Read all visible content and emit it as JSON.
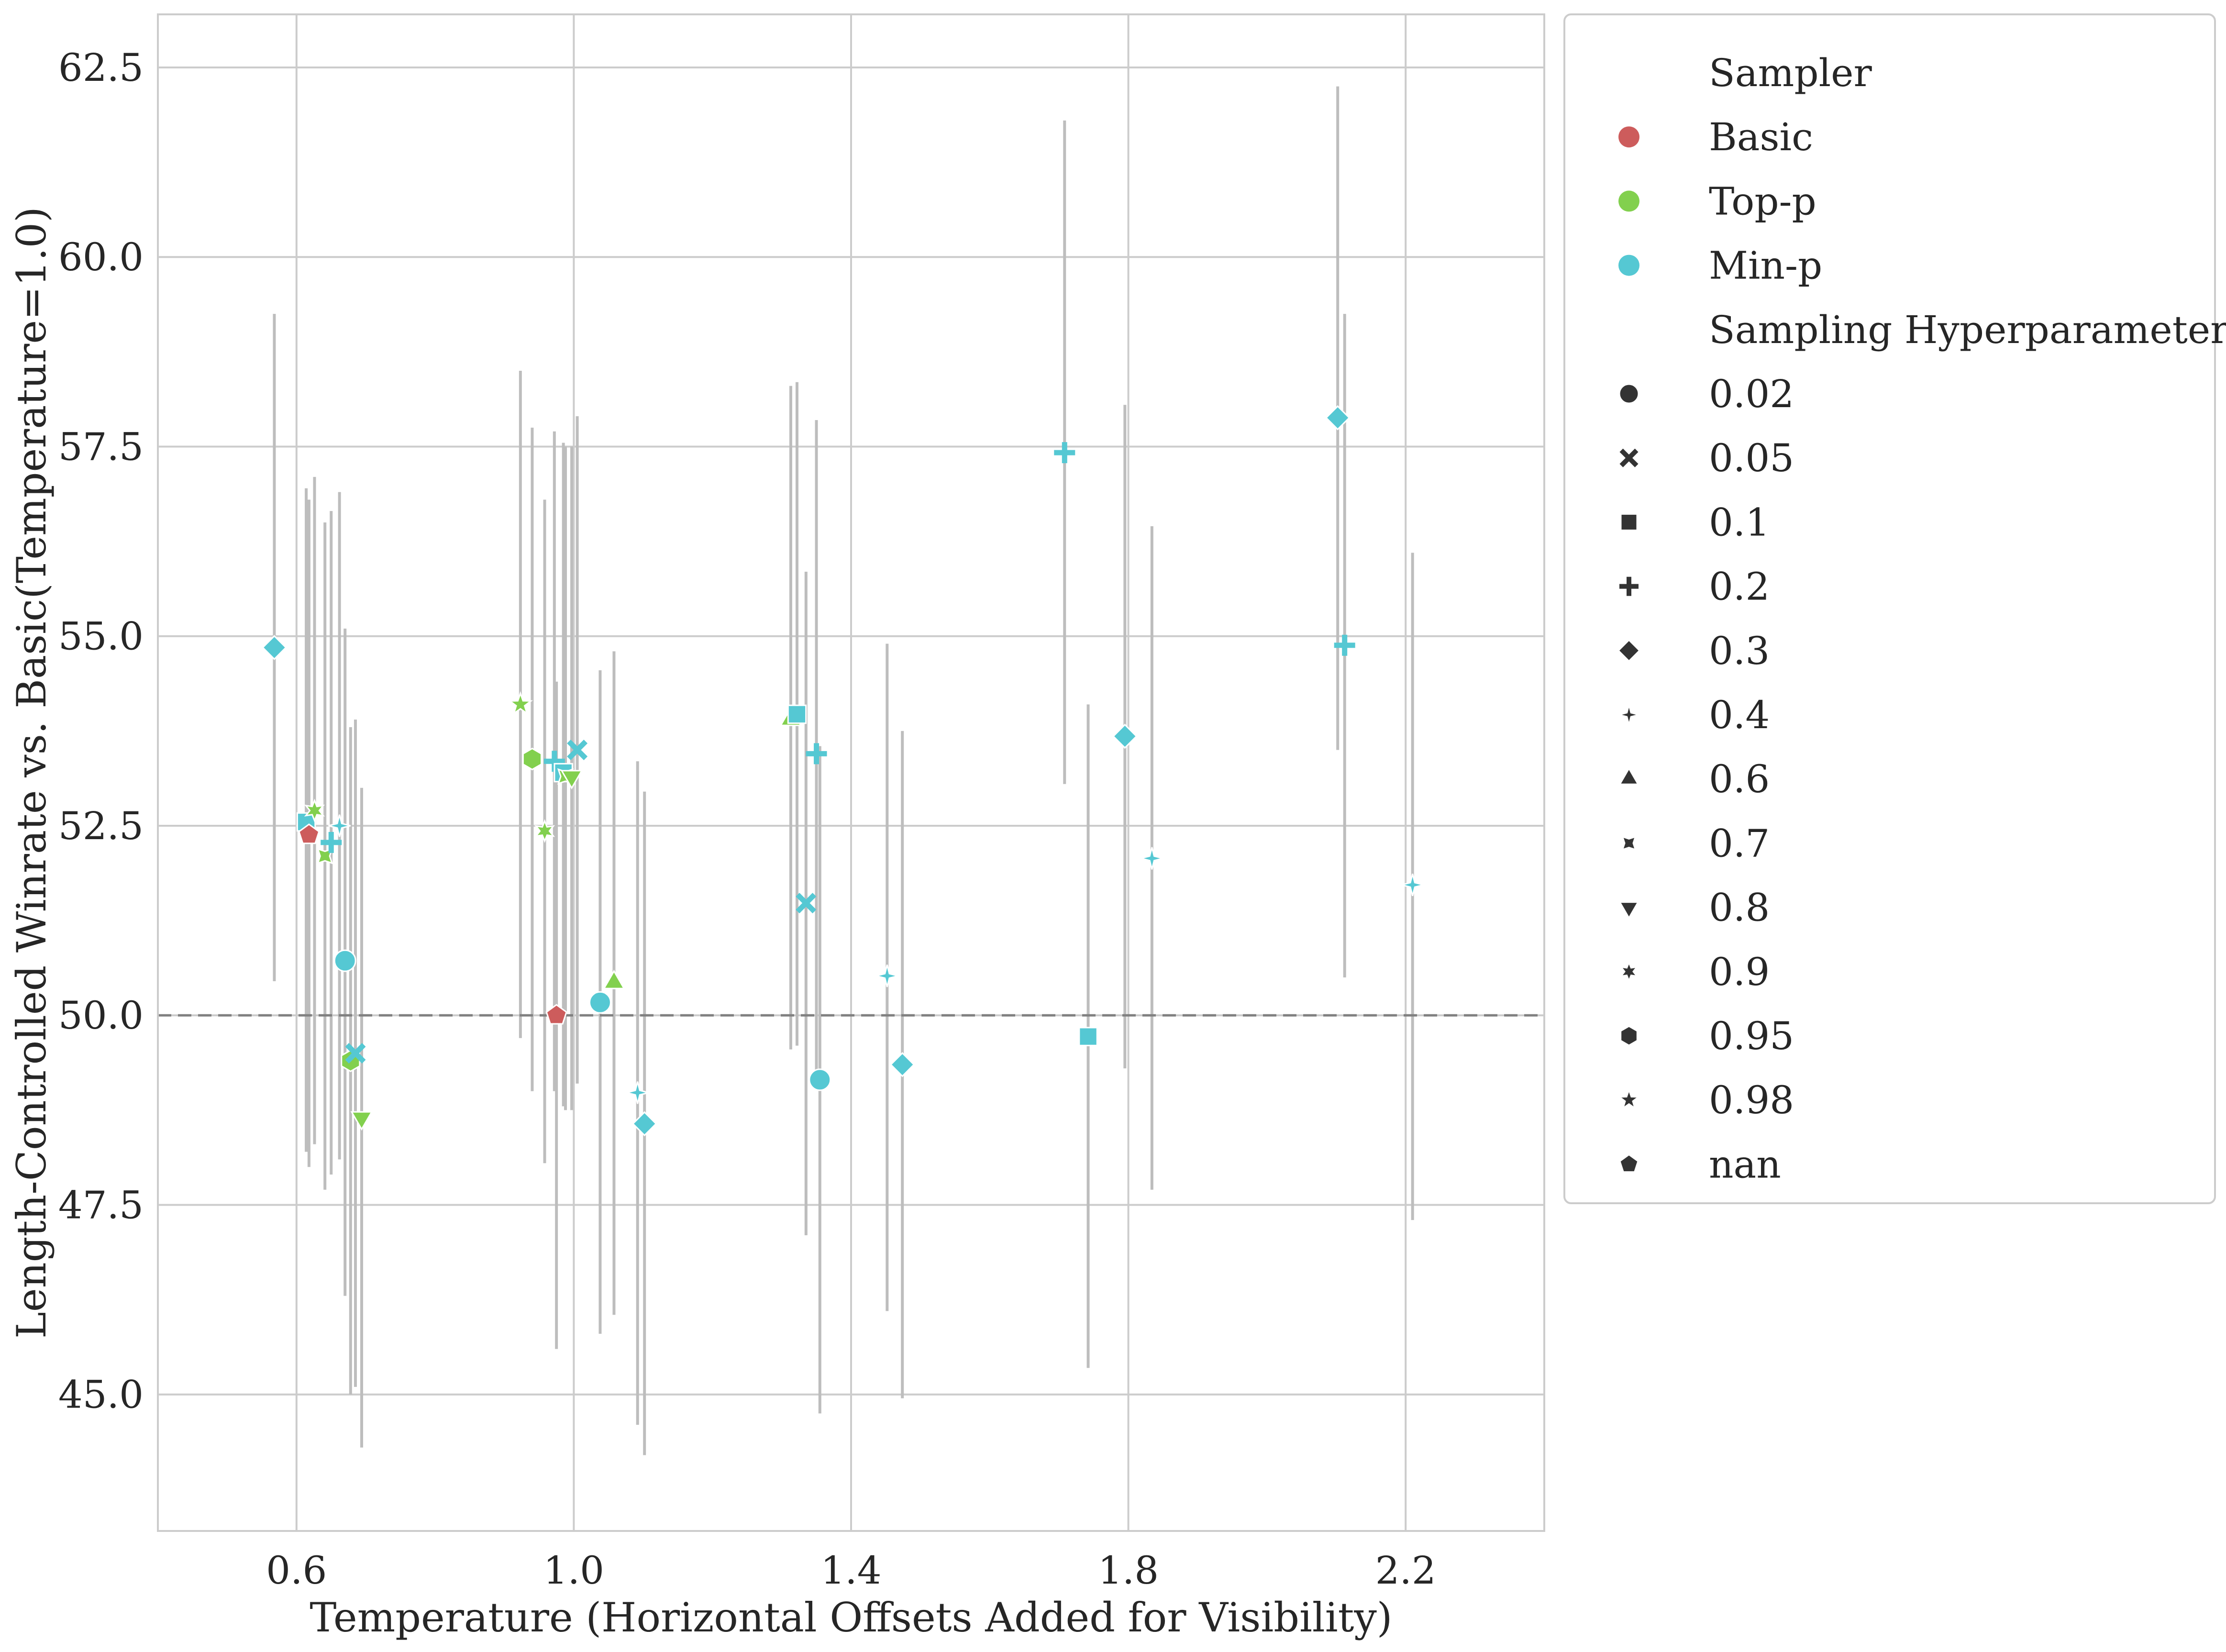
{
  "chart_data": {
    "type": "scatter",
    "xlabel": "Temperature (Horizontal Offsets Added for Visibility)",
    "ylabel": "Length-Controlled Winrate vs. Basic(Temperature=1.0)",
    "xlim": [
      0.4,
      2.4
    ],
    "ylim": [
      43.2,
      63.2
    ],
    "xticks": [
      "0.6",
      "1.0",
      "1.4",
      "1.8",
      "2.2"
    ],
    "yticks": [
      "45.0",
      "47.5",
      "50.0",
      "52.5",
      "55.0",
      "57.5",
      "60.0",
      "62.5"
    ],
    "xtick_values": [
      0.6,
      1.0,
      1.4,
      1.8,
      2.2
    ],
    "ytick_values": [
      45.0,
      47.5,
      50.0,
      52.5,
      55.0,
      57.5,
      60.0,
      62.5
    ],
    "grid": true,
    "reference_line": {
      "y": 50.0,
      "style": "dashed",
      "color": "#808080"
    },
    "legend": {
      "position": "outside-right",
      "sampler_title": "Sampler",
      "samplers": [
        {
          "name": "Basic",
          "color": "#cd5c5c"
        },
        {
          "name": "Top-p",
          "color": "#82d04e"
        },
        {
          "name": "Min-p",
          "color": "#55c8d3"
        }
      ],
      "hyper_title": "Sampling Hyperparameter",
      "hyperparameters": [
        {
          "label": "0.02",
          "marker": "circle"
        },
        {
          "label": "0.05",
          "marker": "x"
        },
        {
          "label": "0.1",
          "marker": "square"
        },
        {
          "label": "0.2",
          "marker": "plus"
        },
        {
          "label": "0.3",
          "marker": "diamond"
        },
        {
          "label": "0.4",
          "marker": "star4"
        },
        {
          "label": "0.6",
          "marker": "triangle-up"
        },
        {
          "label": "0.7",
          "marker": "star4-thick"
        },
        {
          "label": "0.8",
          "marker": "triangle-down"
        },
        {
          "label": "0.9",
          "marker": "star6"
        },
        {
          "label": "0.95",
          "marker": "hexagon"
        },
        {
          "label": "0.98",
          "marker": "star5"
        },
        {
          "label": "nan",
          "marker": "pentagon"
        }
      ]
    },
    "points": [
      {
        "sampler": "Min-p",
        "hp": "0.3",
        "x": 0.568,
        "y": 54.85,
        "lo": 50.45,
        "hi": 59.25
      },
      {
        "sampler": "Min-p",
        "hp": "0.1",
        "x": 0.614,
        "y": 52.55,
        "lo": 48.2,
        "hi": 56.95
      },
      {
        "sampler": "Basic",
        "hp": "nan",
        "x": 0.618,
        "y": 52.38,
        "lo": 48.0,
        "hi": 56.8
      },
      {
        "sampler": "Top-p",
        "hp": "0.9",
        "x": 0.626,
        "y": 52.7,
        "lo": 48.3,
        "hi": 57.1
      },
      {
        "sampler": "Top-p",
        "hp": "0.7",
        "x": 0.641,
        "y": 52.1,
        "lo": 47.7,
        "hi": 56.5
      },
      {
        "sampler": "Min-p",
        "hp": "0.2",
        "x": 0.65,
        "y": 52.28,
        "lo": 47.9,
        "hi": 56.65
      },
      {
        "sampler": "Min-p",
        "hp": "0.4",
        "x": 0.662,
        "y": 52.5,
        "lo": 48.1,
        "hi": 56.9
      },
      {
        "sampler": "Min-p",
        "hp": "0.02",
        "x": 0.67,
        "y": 50.72,
        "lo": 46.3,
        "hi": 55.1
      },
      {
        "sampler": "Top-p",
        "hp": "0.95",
        "x": 0.678,
        "y": 49.4,
        "lo": 45.0,
        "hi": 53.8
      },
      {
        "sampler": "Min-p",
        "hp": "0.05",
        "x": 0.685,
        "y": 49.5,
        "lo": 45.1,
        "hi": 53.9
      },
      {
        "sampler": "Top-p",
        "hp": "0.8",
        "x": 0.694,
        "y": 48.65,
        "lo": 44.3,
        "hi": 53.0
      },
      {
        "sampler": "Top-p",
        "hp": "0.98",
        "x": 0.923,
        "y": 54.1,
        "lo": 49.7,
        "hi": 58.5
      },
      {
        "sampler": "Top-p",
        "hp": "0.95",
        "x": 0.94,
        "y": 53.38,
        "lo": 49.0,
        "hi": 57.75
      },
      {
        "sampler": "Top-p",
        "hp": "0.9",
        "x": 0.958,
        "y": 52.43,
        "lo": 48.05,
        "hi": 56.8
      },
      {
        "sampler": "Min-p",
        "hp": "0.2",
        "x": 0.972,
        "y": 53.35,
        "lo": 49.0,
        "hi": 57.7
      },
      {
        "sampler": "Basic",
        "hp": "nan",
        "x": 0.975,
        "y": 50.0,
        "lo": 45.6,
        "hi": 54.4
      },
      {
        "sampler": "Min-p",
        "hp": "0.1",
        "x": 0.985,
        "y": 53.2,
        "lo": 48.8,
        "hi": 57.55
      },
      {
        "sampler": "Top-p",
        "hp": "0.7",
        "x": 0.988,
        "y": 53.15,
        "lo": 48.75,
        "hi": 57.5
      },
      {
        "sampler": "Top-p",
        "hp": "0.8",
        "x": 0.997,
        "y": 53.15,
        "lo": 48.75,
        "hi": 57.5
      },
      {
        "sampler": "Min-p",
        "hp": "0.05",
        "x": 1.005,
        "y": 53.5,
        "lo": 49.1,
        "hi": 57.9
      },
      {
        "sampler": "Min-p",
        "hp": "0.02",
        "x": 1.038,
        "y": 50.17,
        "lo": 45.8,
        "hi": 54.55
      },
      {
        "sampler": "Top-p",
        "hp": "0.6",
        "x": 1.058,
        "y": 50.43,
        "lo": 46.05,
        "hi": 54.8
      },
      {
        "sampler": "Min-p",
        "hp": "0.4",
        "x": 1.092,
        "y": 48.98,
        "lo": 44.6,
        "hi": 53.35
      },
      {
        "sampler": "Min-p",
        "hp": "0.3",
        "x": 1.102,
        "y": 48.57,
        "lo": 44.2,
        "hi": 52.95
      },
      {
        "sampler": "Top-p",
        "hp": "0.6",
        "x": 1.313,
        "y": 53.9,
        "lo": 49.55,
        "hi": 58.3
      },
      {
        "sampler": "Min-p",
        "hp": "0.1",
        "x": 1.322,
        "y": 53.97,
        "lo": 49.6,
        "hi": 58.35
      },
      {
        "sampler": "Min-p",
        "hp": "0.05",
        "x": 1.335,
        "y": 51.48,
        "lo": 47.1,
        "hi": 55.85
      },
      {
        "sampler": "Min-p",
        "hp": "0.2",
        "x": 1.35,
        "y": 53.45,
        "lo": 49.05,
        "hi": 57.85
      },
      {
        "sampler": "Min-p",
        "hp": "0.02",
        "x": 1.355,
        "y": 49.15,
        "lo": 44.75,
        "hi": 53.55
      },
      {
        "sampler": "Min-p",
        "hp": "0.4",
        "x": 1.452,
        "y": 50.52,
        "lo": 46.1,
        "hi": 54.9
      },
      {
        "sampler": "Min-p",
        "hp": "0.3",
        "x": 1.474,
        "y": 49.35,
        "lo": 44.95,
        "hi": 53.75
      },
      {
        "sampler": "Min-p",
        "hp": "0.2",
        "x": 1.708,
        "y": 57.42,
        "lo": 53.05,
        "hi": 61.8
      },
      {
        "sampler": "Min-p",
        "hp": "0.1",
        "x": 1.742,
        "y": 49.72,
        "lo": 45.35,
        "hi": 54.1
      },
      {
        "sampler": "Min-p",
        "hp": "0.3",
        "x": 1.795,
        "y": 53.68,
        "lo": 49.3,
        "hi": 58.05
      },
      {
        "sampler": "Min-p",
        "hp": "0.4",
        "x": 1.834,
        "y": 52.07,
        "lo": 47.7,
        "hi": 56.45
      },
      {
        "sampler": "Min-p",
        "hp": "0.3",
        "x": 2.102,
        "y": 57.88,
        "lo": 53.5,
        "hi": 62.25
      },
      {
        "sampler": "Min-p",
        "hp": "0.2",
        "x": 2.112,
        "y": 54.88,
        "lo": 50.5,
        "hi": 59.25
      },
      {
        "sampler": "Min-p",
        "hp": "0.4",
        "x": 2.21,
        "y": 51.72,
        "lo": 47.3,
        "hi": 56.1
      }
    ]
  }
}
